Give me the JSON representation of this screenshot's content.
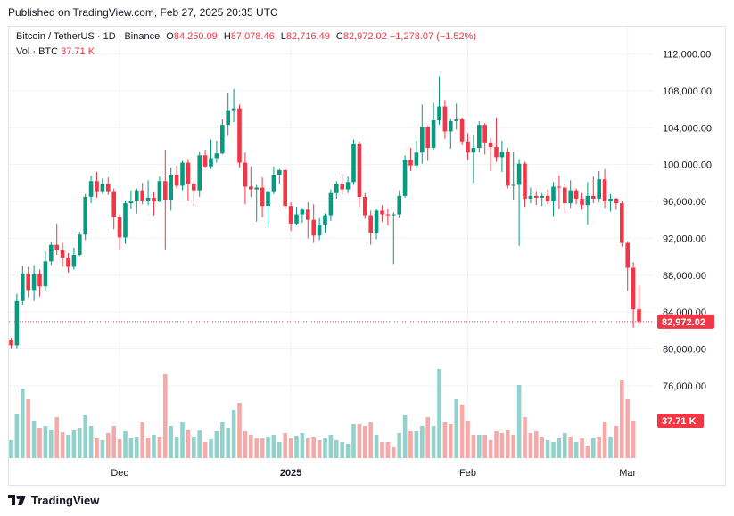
{
  "header": {
    "published": "Published on TradingView.com, Feb 27, 2025 20:35 UTC"
  },
  "legend": {
    "symbol": "Bitcoin / TetherUS · 1D · Binance",
    "o_label": "O",
    "o": "84,250.09",
    "h_label": "H",
    "h": "87,078.46",
    "l_label": "L",
    "l": "82,716.49",
    "c_label": "C",
    "c": "82,972.02",
    "change": "−1,278.07 (−1.52%)",
    "vol_label": "Vol · BTC",
    "vol_value": "37.71 K"
  },
  "footer": {
    "brand": "TradingView"
  },
  "colors": {
    "up": "#089981",
    "down": "#f23645",
    "vol_up": "#92d2cc",
    "vol_down": "#f7a9a7",
    "grid": "#f0f3fa",
    "text": "#131722"
  },
  "chart_data": {
    "type": "candlestick",
    "title": "Bitcoin / TetherUS · 1D · Binance",
    "y_ticks": [
      "112,000.00",
      "108,000.00",
      "104,000.00",
      "100,000.00",
      "96,000.00",
      "92,000.00",
      "88,000.00",
      "84,000.00",
      "80,000.00",
      "76,000.00"
    ],
    "y_tick_values": [
      112000,
      108000,
      104000,
      100000,
      96000,
      92000,
      88000,
      84000,
      80000,
      76000
    ],
    "ylim": [
      73000,
      113500
    ],
    "x_labels": [
      "Dec",
      "2025",
      "Feb",
      "Mar"
    ],
    "x_label_index": [
      19,
      49,
      80,
      108
    ],
    "n_slots": 110,
    "last_price": 82972.02,
    "last_price_label": "82,972.02",
    "volume_label": "37.71 K",
    "volume_unit": "K BTC",
    "candles": [
      [
        81000,
        80400,
        81200,
        80000
      ],
      [
        80400,
        85200,
        86000,
        80000
      ],
      [
        85200,
        88200,
        89000,
        84800
      ],
      [
        88200,
        86400,
        88900,
        85600
      ],
      [
        86400,
        88100,
        89100,
        85200
      ],
      [
        88100,
        86800,
        88600,
        85700
      ],
      [
        86800,
        89500,
        90600,
        86300
      ],
      [
        89500,
        91300,
        91600,
        89100
      ],
      [
        91300,
        90700,
        93600,
        90200
      ],
      [
        90700,
        89900,
        91500,
        88900
      ],
      [
        89900,
        88900,
        90400,
        88300
      ],
      [
        88900,
        90200,
        91000,
        88600
      ],
      [
        90200,
        92400,
        92700,
        90100
      ],
      [
        92400,
        96500,
        96800,
        91800
      ],
      [
        96500,
        98200,
        98800,
        95800
      ],
      [
        98200,
        97100,
        99200,
        96400
      ],
      [
        97100,
        97900,
        98500,
        96800
      ],
      [
        97900,
        97100,
        98600,
        96700
      ],
      [
        97100,
        94300,
        97400,
        93000
      ],
      [
        94300,
        92100,
        94600,
        90800
      ],
      [
        92100,
        95800,
        96100,
        91400
      ],
      [
        95800,
        96100,
        97200,
        95200
      ],
      [
        96100,
        97200,
        97400,
        94700
      ],
      [
        97200,
        96100,
        98000,
        95700
      ],
      [
        96100,
        96400,
        98300,
        95600
      ],
      [
        96400,
        96000,
        97000,
        94500
      ],
      [
        96000,
        98200,
        98700,
        95900
      ],
      [
        98200,
        96200,
        101600,
        90800
      ],
      [
        96200,
        98900,
        99700,
        95000
      ],
      [
        98900,
        97700,
        99900,
        97400
      ],
      [
        97700,
        100200,
        100400,
        97200
      ],
      [
        100200,
        97900,
        100600,
        96100
      ],
      [
        97900,
        97200,
        98300,
        95500
      ],
      [
        97200,
        101000,
        101400,
        96500
      ],
      [
        101000,
        99800,
        101600,
        99600
      ],
      [
        99800,
        100700,
        102700,
        99500
      ],
      [
        100700,
        101200,
        102600,
        100200
      ],
      [
        101200,
        104300,
        104900,
        101100
      ],
      [
        104300,
        105900,
        107800,
        103100
      ],
      [
        105900,
        106100,
        108200,
        104600
      ],
      [
        106100,
        100200,
        106500,
        99700
      ],
      [
        100200,
        97600,
        101300,
        95700
      ],
      [
        97600,
        97300,
        99800,
        96500
      ],
      [
        97300,
        97500,
        97800,
        93800
      ],
      [
        97500,
        95500,
        98600,
        94300
      ],
      [
        95500,
        97100,
        97200,
        93200
      ],
      [
        97100,
        98900,
        99800,
        96800
      ],
      [
        98900,
        99400,
        99500,
        97900
      ],
      [
        99400,
        95500,
        99700,
        95200
      ],
      [
        95500,
        93600,
        95900,
        92800
      ],
      [
        93600,
        94600,
        95400,
        93400
      ],
      [
        94600,
        95100,
        95300,
        93700
      ],
      [
        95100,
        94000,
        95900,
        92000
      ],
      [
        94000,
        92300,
        95700,
        91500
      ],
      [
        92300,
        93500,
        94200,
        91800
      ],
      [
        93500,
        94500,
        94700,
        92600
      ],
      [
        94500,
        96900,
        97300,
        93900
      ],
      [
        96900,
        97900,
        98200,
        96300
      ],
      [
        97900,
        97300,
        99000,
        96700
      ],
      [
        97300,
        98100,
        98700,
        96900
      ],
      [
        98100,
        102200,
        102700,
        97800
      ],
      [
        102200,
        96500,
        102500,
        95400
      ],
      [
        96500,
        94500,
        96900,
        94100
      ],
      [
        94500,
        92600,
        95000,
        91300
      ],
      [
        92600,
        95000,
        95200,
        91900
      ],
      [
        95000,
        94600,
        95600,
        93800
      ],
      [
        94600,
        94500,
        95200,
        93400
      ],
      [
        94500,
        94600,
        94800,
        89200
      ],
      [
        94600,
        96600,
        97200,
        94200
      ],
      [
        96600,
        100500,
        101000,
        96400
      ],
      [
        100500,
        99900,
        101800,
        99300
      ],
      [
        99900,
        101300,
        102600,
        99600
      ],
      [
        101300,
        104100,
        106500,
        100100
      ],
      [
        104100,
        101800,
        104200,
        100400
      ],
      [
        101800,
        104800,
        106700,
        101600
      ],
      [
        104800,
        106300,
        109600,
        104300
      ],
      [
        106300,
        103600,
        107000,
        102800
      ],
      [
        103600,
        104700,
        105000,
        101700
      ],
      [
        104700,
        104900,
        106600,
        103800
      ],
      [
        104900,
        102500,
        105100,
        102100
      ],
      [
        102500,
        101300,
        103400,
        100500
      ],
      [
        101300,
        101800,
        103200,
        98000
      ],
      [
        101800,
        104300,
        104700,
        101300
      ],
      [
        104300,
        102400,
        104500,
        101100
      ],
      [
        102400,
        101900,
        102900,
        99300
      ],
      [
        101900,
        100800,
        105100,
        100300
      ],
      [
        100800,
        101400,
        102600,
        99200
      ],
      [
        101400,
        97700,
        101800,
        97400
      ],
      [
        97700,
        97800,
        101400,
        96200
      ],
      [
        97800,
        100100,
        100600,
        91200
      ],
      [
        100100,
        96300,
        100300,
        95400
      ],
      [
        96300,
        96600,
        97500,
        95800
      ],
      [
        96600,
        96400,
        97100,
        95600
      ],
      [
        96400,
        96600,
        96900,
        95500
      ],
      [
        96600,
        96000,
        97300,
        95700
      ],
      [
        96000,
        97600,
        98100,
        94400
      ],
      [
        97600,
        97500,
        98800,
        95200
      ],
      [
        97500,
        95800,
        97900,
        94800
      ],
      [
        95800,
        97200,
        98300,
        95300
      ],
      [
        97200,
        96300,
        97400,
        95700
      ],
      [
        96300,
        95600,
        96900,
        95100
      ],
      [
        95600,
        96600,
        98100,
        93500
      ],
      [
        96600,
        96300,
        98700,
        95800
      ],
      [
        96300,
        98400,
        99300,
        95900
      ],
      [
        98400,
        96000,
        99500,
        95300
      ],
      [
        96000,
        96300,
        96800,
        94900
      ],
      [
        96300,
        95800,
        96400,
        95100
      ],
      [
        95800,
        91500,
        96100,
        91100
      ],
      [
        91500,
        88800,
        91700,
        86300
      ],
      [
        88800,
        84300,
        89400,
        82300
      ],
      [
        84300,
        83000,
        86900,
        82700
      ]
    ],
    "volumes": [
      [
        20,
        "u"
      ],
      [
        50,
        "u"
      ],
      [
        78,
        "u"
      ],
      [
        66,
        "d"
      ],
      [
        42,
        "u"
      ],
      [
        34,
        "d"
      ],
      [
        36,
        "u"
      ],
      [
        32,
        "u"
      ],
      [
        46,
        "d"
      ],
      [
        29,
        "d"
      ],
      [
        26,
        "u"
      ],
      [
        31,
        "u"
      ],
      [
        34,
        "u"
      ],
      [
        48,
        "u"
      ],
      [
        36,
        "u"
      ],
      [
        22,
        "d"
      ],
      [
        20,
        "u"
      ],
      [
        28,
        "d"
      ],
      [
        36,
        "d"
      ],
      [
        21,
        "d"
      ],
      [
        30,
        "u"
      ],
      [
        22,
        "u"
      ],
      [
        24,
        "u"
      ],
      [
        40,
        "d"
      ],
      [
        23,
        "d"
      ],
      [
        26,
        "u"
      ],
      [
        24,
        "d"
      ],
      [
        94,
        "d"
      ],
      [
        36,
        "u"
      ],
      [
        24,
        "u"
      ],
      [
        40,
        "u"
      ],
      [
        32,
        "d"
      ],
      [
        24,
        "u"
      ],
      [
        31,
        "u"
      ],
      [
        18,
        "d"
      ],
      [
        21,
        "u"
      ],
      [
        30,
        "u"
      ],
      [
        40,
        "u"
      ],
      [
        34,
        "u"
      ],
      [
        54,
        "u"
      ],
      [
        62,
        "d"
      ],
      [
        30,
        "d"
      ],
      [
        26,
        "d"
      ],
      [
        22,
        "d"
      ],
      [
        22,
        "d"
      ],
      [
        24,
        "u"
      ],
      [
        26,
        "u"
      ],
      [
        18,
        "u"
      ],
      [
        28,
        "d"
      ],
      [
        22,
        "d"
      ],
      [
        25,
        "u"
      ],
      [
        28,
        "u"
      ],
      [
        22,
        "d"
      ],
      [
        24,
        "d"
      ],
      [
        20,
        "d"
      ],
      [
        22,
        "u"
      ],
      [
        26,
        "u"
      ],
      [
        20,
        "u"
      ],
      [
        18,
        "u"
      ],
      [
        16,
        "u"
      ],
      [
        38,
        "u"
      ],
      [
        38,
        "d"
      ],
      [
        36,
        "d"
      ],
      [
        40,
        "d"
      ],
      [
        26,
        "u"
      ],
      [
        18,
        "d"
      ],
      [
        18,
        "d"
      ],
      [
        12,
        "d"
      ],
      [
        28,
        "u"
      ],
      [
        48,
        "u"
      ],
      [
        30,
        "d"
      ],
      [
        30,
        "u"
      ],
      [
        36,
        "u"
      ],
      [
        46,
        "d"
      ],
      [
        36,
        "u"
      ],
      [
        100,
        "u"
      ],
      [
        40,
        "d"
      ],
      [
        38,
        "d"
      ],
      [
        66,
        "u"
      ],
      [
        60,
        "d"
      ],
      [
        42,
        "d"
      ],
      [
        26,
        "d"
      ],
      [
        26,
        "u"
      ],
      [
        26,
        "d"
      ],
      [
        20,
        "d"
      ],
      [
        30,
        "d"
      ],
      [
        28,
        "d"
      ],
      [
        32,
        "d"
      ],
      [
        26,
        "d"
      ],
      [
        82,
        "u"
      ],
      [
        46,
        "d"
      ],
      [
        28,
        "d"
      ],
      [
        30,
        "d"
      ],
      [
        24,
        "d"
      ],
      [
        20,
        "u"
      ],
      [
        18,
        "u"
      ],
      [
        22,
        "u"
      ],
      [
        28,
        "u"
      ],
      [
        24,
        "d"
      ],
      [
        18,
        "u"
      ],
      [
        22,
        "d"
      ],
      [
        14,
        "d"
      ],
      [
        22,
        "u"
      ],
      [
        24,
        "d"
      ],
      [
        40,
        "d"
      ],
      [
        24,
        "u"
      ],
      [
        36,
        "d"
      ],
      [
        88,
        "d"
      ],
      [
        66,
        "d"
      ],
      [
        42,
        "d"
      ]
    ]
  }
}
